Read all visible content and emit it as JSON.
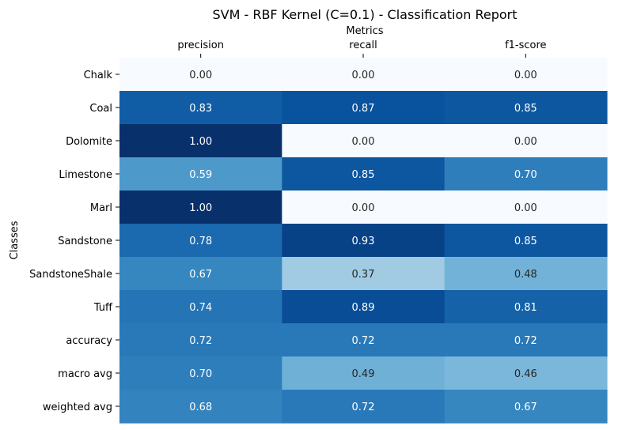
{
  "chart_data": {
    "type": "heatmap",
    "title": "SVM - RBF Kernel (C=0.1) - Classification Report",
    "xlabel": "Metrics",
    "ylabel": "Classes",
    "columns": [
      "precision",
      "recall",
      "f1-score"
    ],
    "rows": [
      "Chalk",
      "Coal",
      "Dolomite",
      "Limestone",
      "Marl",
      "Sandstone",
      "SandstoneShale",
      "Tuff",
      "accuracy",
      "macro avg",
      "weighted avg"
    ],
    "values": [
      [
        0.0,
        0.0,
        0.0
      ],
      [
        0.83,
        0.87,
        0.85
      ],
      [
        1.0,
        0.0,
        0.0
      ],
      [
        0.59,
        0.85,
        0.7
      ],
      [
        1.0,
        0.0,
        0.0
      ],
      [
        0.78,
        0.93,
        0.85
      ],
      [
        0.67,
        0.37,
        0.48
      ],
      [
        0.74,
        0.89,
        0.81
      ],
      [
        0.72,
        0.72,
        0.72
      ],
      [
        0.7,
        0.49,
        0.46
      ],
      [
        0.68,
        0.72,
        0.67
      ]
    ],
    "value_format": "2 decimals",
    "colormap": "Blues",
    "vmin": 0,
    "vmax": 1,
    "colorbar": false,
    "x_ticks_position": "top"
  }
}
